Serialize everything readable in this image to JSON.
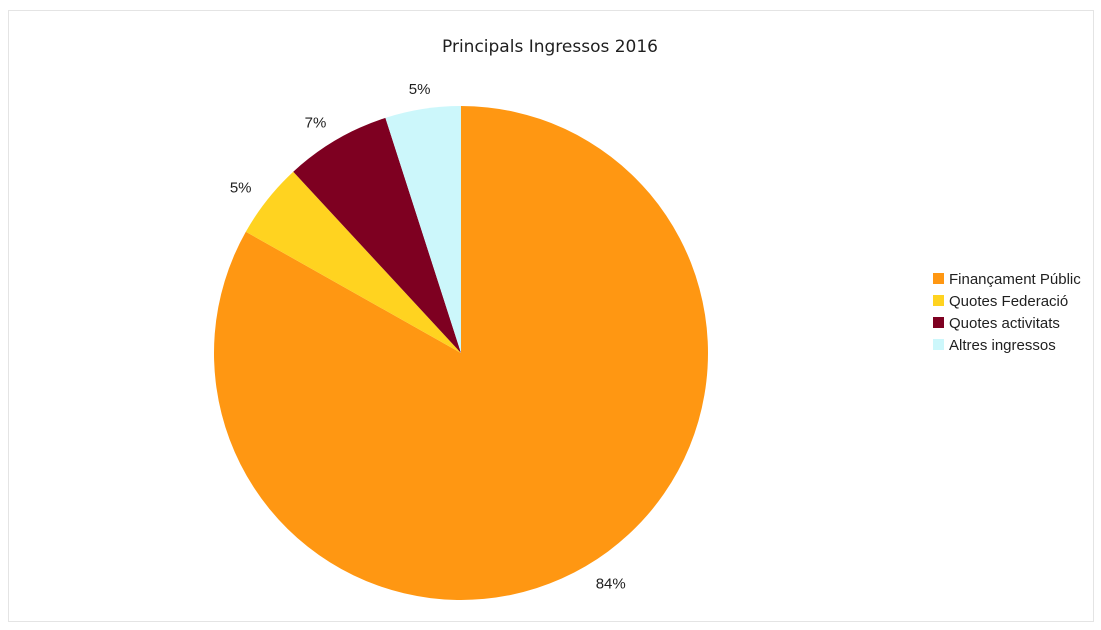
{
  "chart_data": {
    "type": "pie",
    "title": "Principals Ingressos 2016",
    "categories": [
      "Finançament Públic",
      "Quotes Federació",
      "Quotes activitats",
      "Altres ingressos"
    ],
    "values": [
      84,
      5,
      7,
      5
    ],
    "labels": [
      "84%",
      "5%",
      "7%",
      "5%"
    ],
    "colors": [
      "#ff9712",
      "#ffd320",
      "#7e0021",
      "#ccf7fb"
    ],
    "legend_position": "right"
  }
}
